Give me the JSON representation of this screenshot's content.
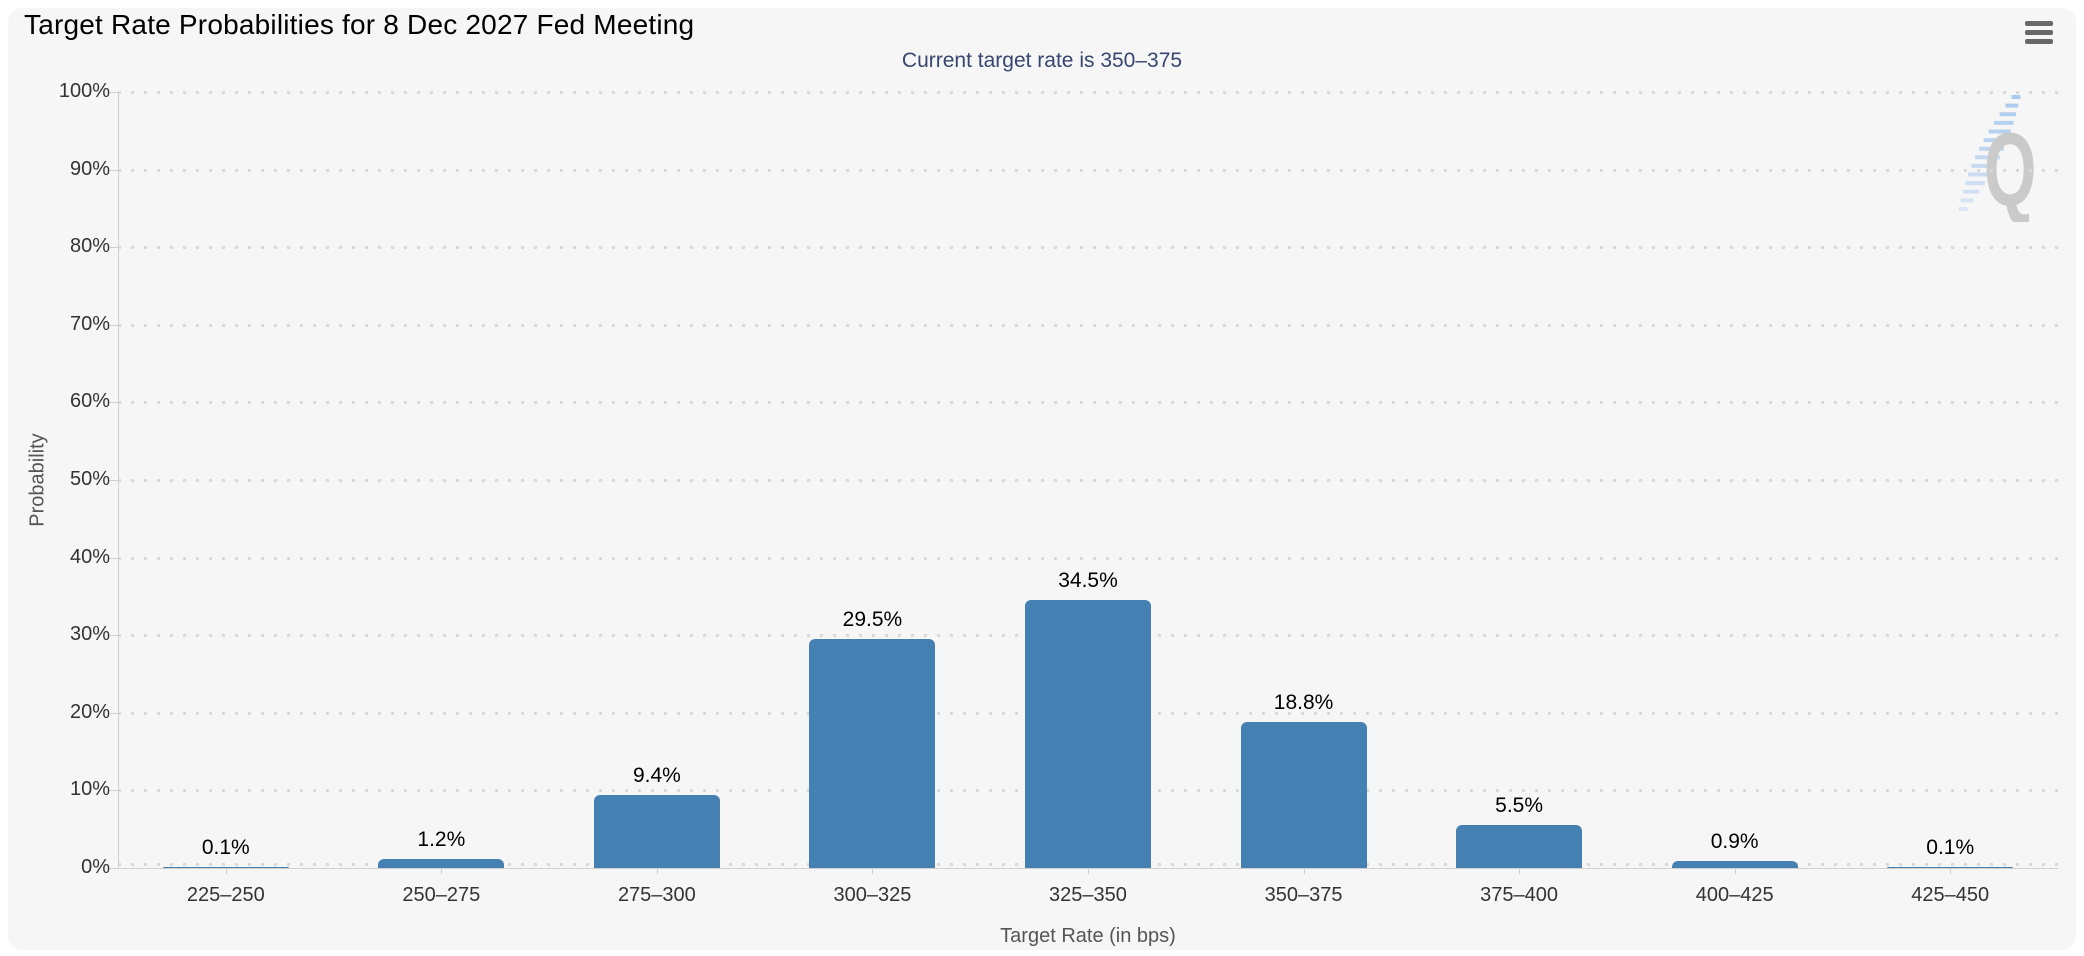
{
  "header": {
    "title": "Target Rate Probabilities for 8 Dec 2027 Fed Meeting",
    "menu_tooltip": "Chart context menu"
  },
  "chart_data": {
    "type": "bar",
    "title": "Target Rate Probabilities for 8 Dec 2027 Fed Meeting",
    "subtitle": "Current target rate is 350–375",
    "categories": [
      "225–250",
      "250–275",
      "275–300",
      "300–325",
      "325–350",
      "350–375",
      "375–400",
      "400–425",
      "425–450"
    ],
    "values": [
      0.1,
      1.2,
      9.4,
      29.5,
      34.5,
      18.8,
      5.5,
      0.9,
      0.1
    ],
    "value_labels": [
      "0.1%",
      "1.2%",
      "9.4%",
      "29.5%",
      "34.5%",
      "18.8%",
      "5.5%",
      "0.9%",
      "0.1%"
    ],
    "xlabel": "Target Rate (in bps)",
    "ylabel": "Probability",
    "ylim": [
      0,
      100
    ],
    "ytick_step": 10,
    "ytick_labels": [
      "0%",
      "10%",
      "20%",
      "30%",
      "40%",
      "50%",
      "60%",
      "70%",
      "80%",
      "90%",
      "100%"
    ],
    "grid": "dotted horizontal gridlines every 10%",
    "legend": "none",
    "bar_color": "#4480b2",
    "subtitle_color": "#36466e",
    "label_color": "#333333",
    "axis_title_color": "#555555"
  },
  "watermark": {
    "letter": "Q"
  }
}
